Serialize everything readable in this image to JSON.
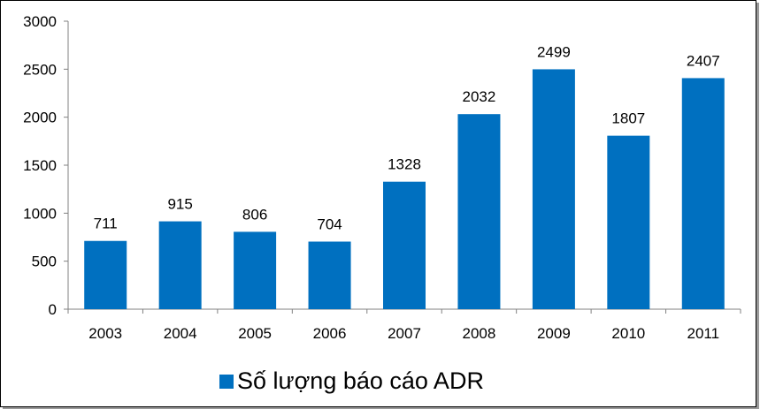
{
  "chart_data": {
    "type": "bar",
    "categories": [
      "2003",
      "2004",
      "2005",
      "2006",
      "2007",
      "2008",
      "2009",
      "2010",
      "2011"
    ],
    "series": [
      {
        "name": "Số lượng báo cáo ADR",
        "values": [
          711,
          915,
          806,
          704,
          1328,
          2032,
          2499,
          1807,
          2407
        ]
      }
    ],
    "data_labels": [
      "711",
      "915",
      "806",
      "704",
      "1328",
      "2032",
      "2499",
      "1807",
      "2407"
    ],
    "y_ticks": [
      "0",
      "500",
      "1000",
      "1500",
      "2000",
      "2500",
      "3000"
    ],
    "ylim": [
      0,
      3000
    ],
    "grid": false,
    "legend_position": "bottom",
    "bar_color": "#0070C0"
  }
}
